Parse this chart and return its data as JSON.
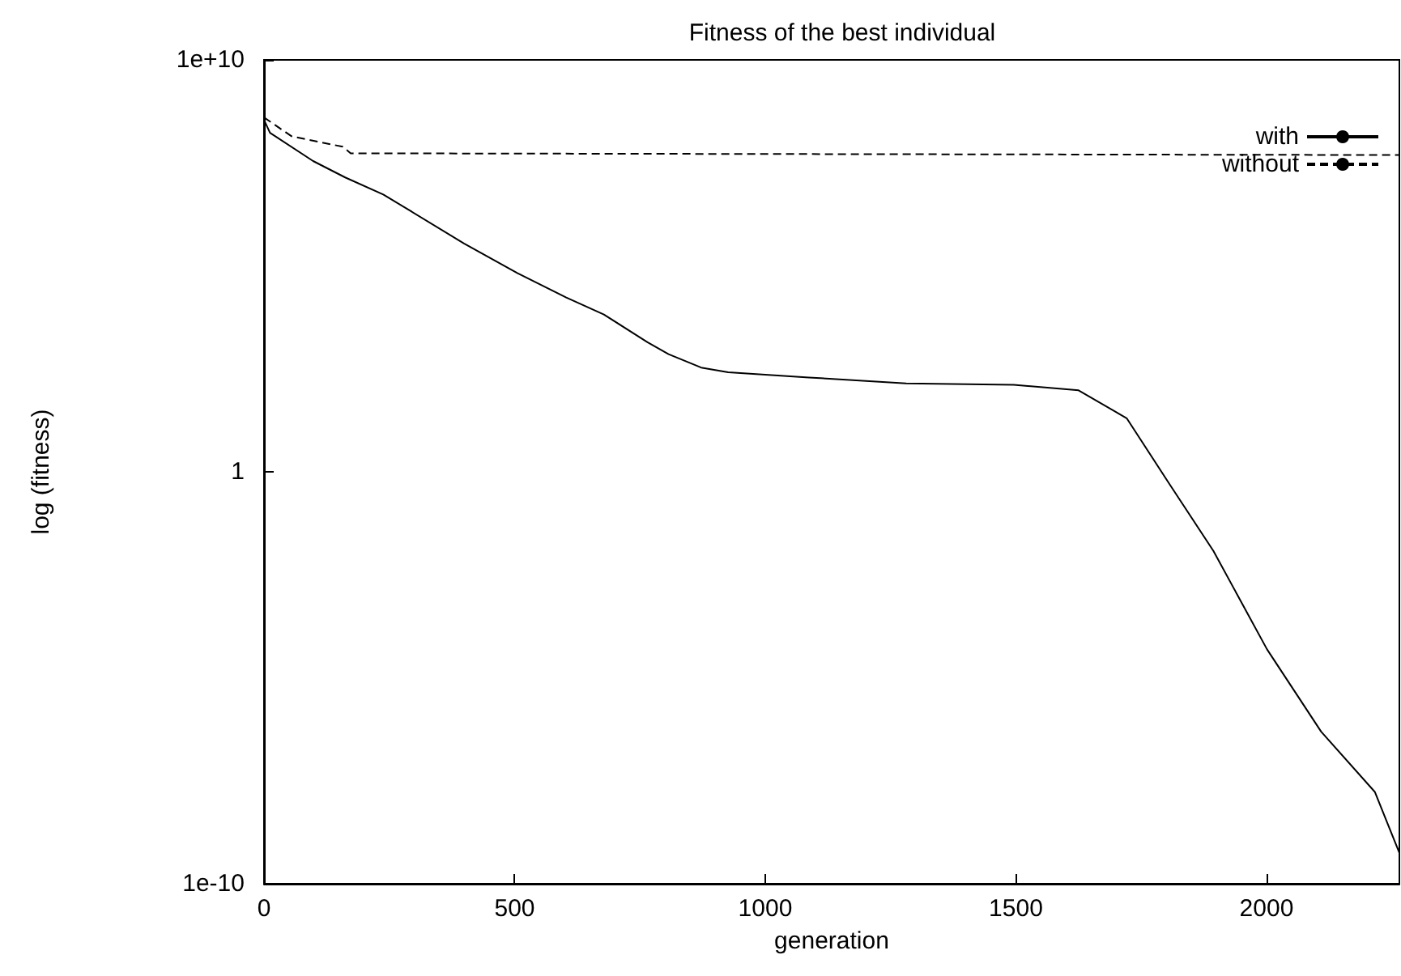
{
  "chart_data": {
    "type": "line",
    "title": "Fitness of the best individual",
    "xlabel": "generation",
    "ylabel": "log (fitness)",
    "log": "y",
    "xlim": [
      0,
      2265
    ],
    "xticks": [
      0,
      500,
      1000,
      1500,
      2000
    ],
    "ylim": [
      1e-10,
      10000000000.0
    ],
    "yticks": [
      {
        "value": 10000000000.0,
        "label": "1e+10"
      },
      1,
      {
        "value": 1e-10,
        "label": "1e-10"
      }
    ],
    "grid": false,
    "legend": "top right",
    "marker": "none",
    "series": [
      {
        "name": "with",
        "color": "#000000",
        "line_style": "solid",
        "x": [
          0,
          12,
          98,
          162,
          238,
          291,
          399,
          506,
          603,
          678,
          765,
          807,
          872,
          926,
          1087,
          1281,
          1496,
          1625,
          1721,
          1807,
          1894,
          2001,
          2109,
          2216,
          2265
        ],
        "values": [
          350000000.0,
          170000000.0,
          35000000.0,
          14000000.0,
          5400000.0,
          2200000.0,
          350000.0,
          66000.0,
          17000.0,
          6600.0,
          1400.0,
          720,
          340,
          260,
          195,
          140,
          130,
          95,
          20,
          0.49,
          0.012,
          4.9e-05,
          4.9e-07,
          1.7e-08,
          5.6e-10
        ]
      },
      {
        "name": "without",
        "color": "#000000",
        "line_style": "dashed",
        "x": [
          0,
          55,
          157,
          173,
          2265
        ],
        "values": [
          400000000.0,
          140000000.0,
          78000000.0,
          54000000.0,
          49000000.0
        ]
      }
    ]
  }
}
